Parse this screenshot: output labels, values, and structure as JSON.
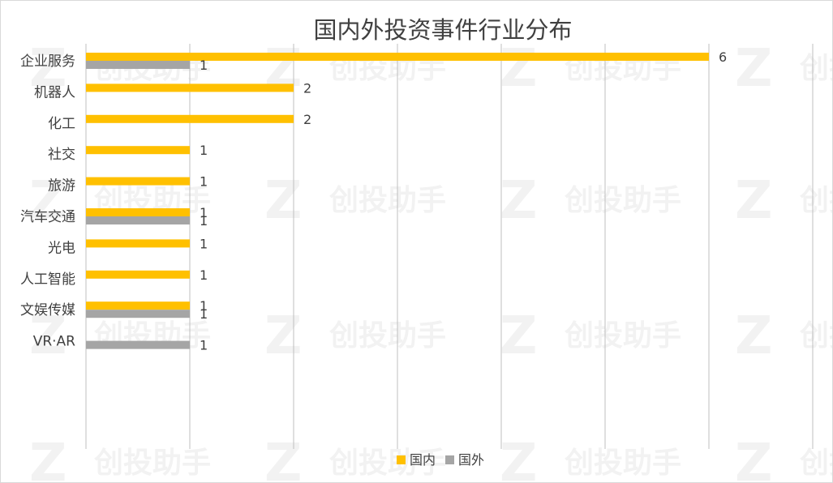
{
  "chart_data": {
    "type": "bar",
    "orientation": "horizontal",
    "title": "国内外投资事件行业分布",
    "categories": [
      "企业服务",
      "机器人",
      "化工",
      "社交",
      "旅游",
      "汽车交通",
      "光电",
      "人工智能",
      "文娱传媒",
      "VR·AR"
    ],
    "series": [
      {
        "name": "国内",
        "color": "#FFC000",
        "values": [
          6,
          2,
          2,
          1,
          1,
          1,
          1,
          1,
          1,
          null
        ]
      },
      {
        "name": "国外",
        "color": "#A5A5A5",
        "values": [
          1,
          null,
          null,
          null,
          null,
          1,
          null,
          null,
          1,
          1
        ]
      }
    ],
    "xlim": [
      0,
      7
    ],
    "grid": true,
    "legend": "bottom",
    "watermark": "创投助手"
  }
}
